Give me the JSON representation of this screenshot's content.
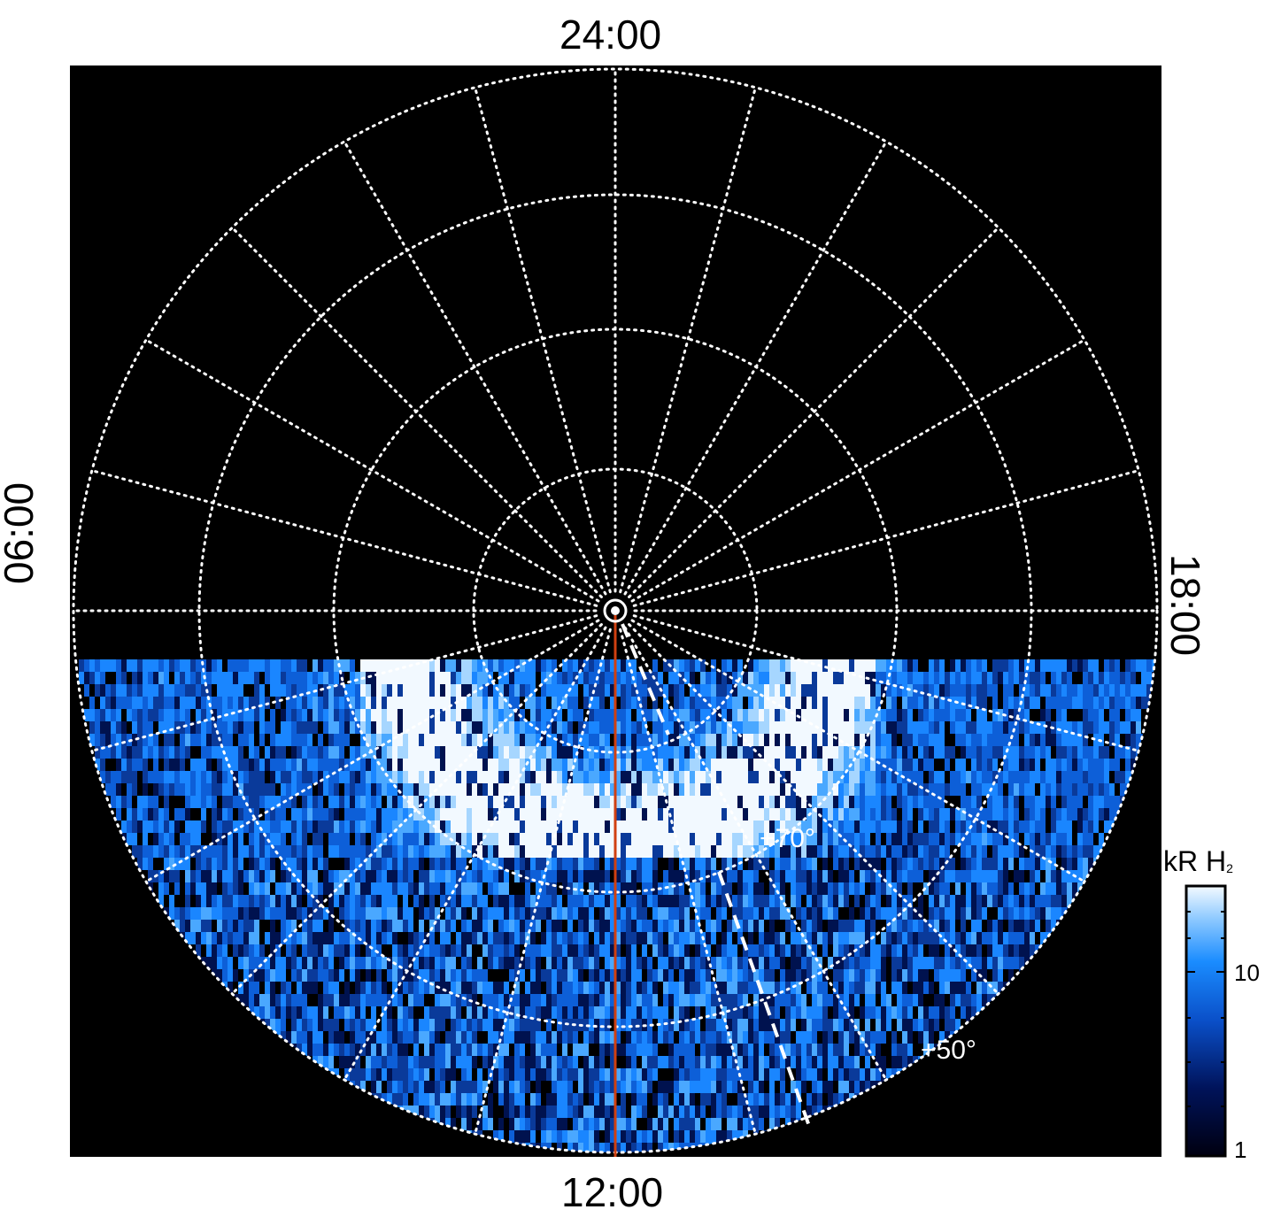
{
  "labels": {
    "top": "24:00",
    "bottom": "12:00",
    "left": "06:00",
    "right": "18:00"
  },
  "grid_labels": {
    "lat_70": "+70°",
    "lat_50": "+50°"
  },
  "colorbar": {
    "title_main": "kR H",
    "title_sub": "2",
    "tick_high": "10",
    "tick_low": "1",
    "scale": "log"
  },
  "colors": {
    "background": "#000000",
    "grid": "#ffffff",
    "meridian_line": "#d04010",
    "emission_low": "#000018",
    "emission_mid": "#1a7bff",
    "emission_high": "#ffffff"
  }
}
